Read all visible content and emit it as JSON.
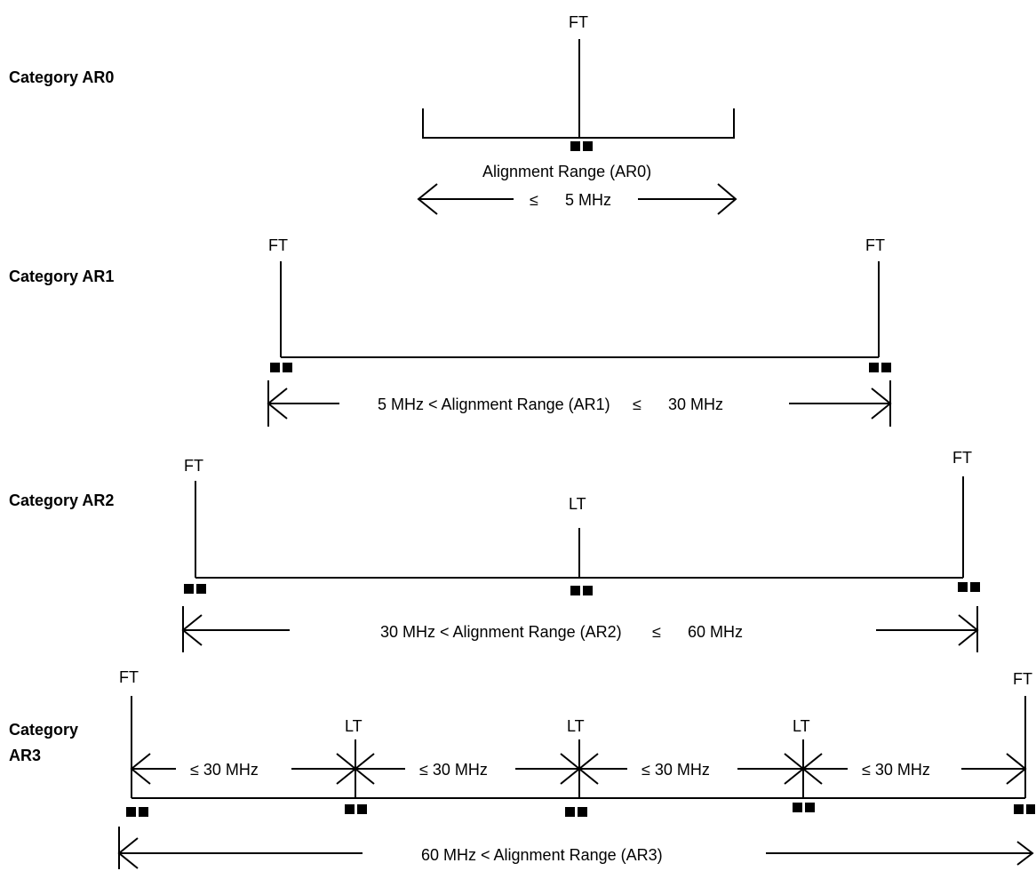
{
  "categories": [
    {
      "name": "Category AR0",
      "labels": {
        "top": "FT"
      },
      "range_text": "Alignment Range  (AR0)",
      "limit_sym": "≤",
      "limit_val": "5 MHz"
    },
    {
      "name": "Category AR1",
      "labels": {
        "left": "FT",
        "right": "FT"
      },
      "range_text": "5 MHz < Alignment Range (AR1)",
      "limit_sym": "≤",
      "limit_val": "30 MHz"
    },
    {
      "name": "Category AR2",
      "labels": {
        "left": "FT",
        "mid": "LT",
        "right": "FT"
      },
      "range_text": "30 MHz < Alignment Range (AR2)",
      "limit_sym": "≤",
      "limit_val": "60 MHz"
    },
    {
      "name_line1": "Category",
      "name_line2": "AR3",
      "labels": {
        "left": "FT",
        "lt1": "LT",
        "lt2": "LT",
        "lt3": "LT",
        "right": "FT"
      },
      "segment_label": "≤ 30 MHz",
      "range_text": "60 MHz < Alignment Range (AR3)"
    }
  ]
}
